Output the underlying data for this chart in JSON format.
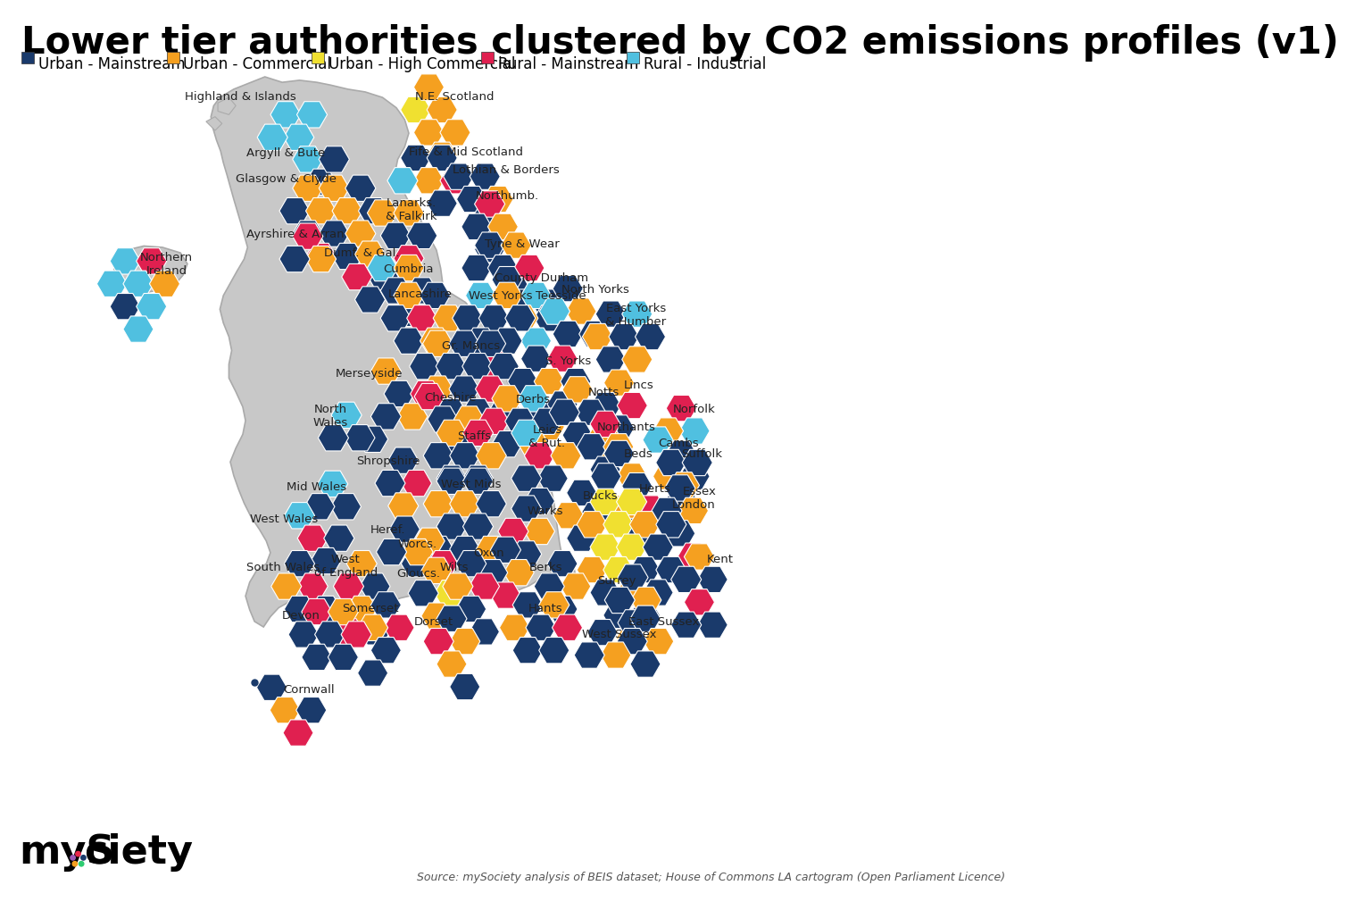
{
  "title": "Lower tier authorities clustered by CO2 emissions profiles (v1)",
  "title_fontsize": 30,
  "title_fontweight": "bold",
  "background_color": "#ffffff",
  "map_gray": "#c8c8c8",
  "map_edge": "#aaaaaa",
  "legend_items": [
    {
      "label": "Urban - Mainstream",
      "color": "#1a3a6b"
    },
    {
      "label": "Urban - Commercial",
      "color": "#f5a020"
    },
    {
      "label": "Urban - High Commercial",
      "color": "#f0e030"
    },
    {
      "label": "Rural - Mainstream",
      "color": "#e02050"
    },
    {
      "label": "Rural - Industrial",
      "color": "#50c0e0"
    }
  ],
  "source_text": "Source: mySociety analysis of BEIS dataset; House of Commons LA cartogram (Open Parliament Licence)",
  "colors": {
    "UM": "#1a3a6b",
    "UC": "#f5a020",
    "UHC": "#f0e030",
    "RM": "#e02050",
    "RI": "#50c0e0"
  }
}
